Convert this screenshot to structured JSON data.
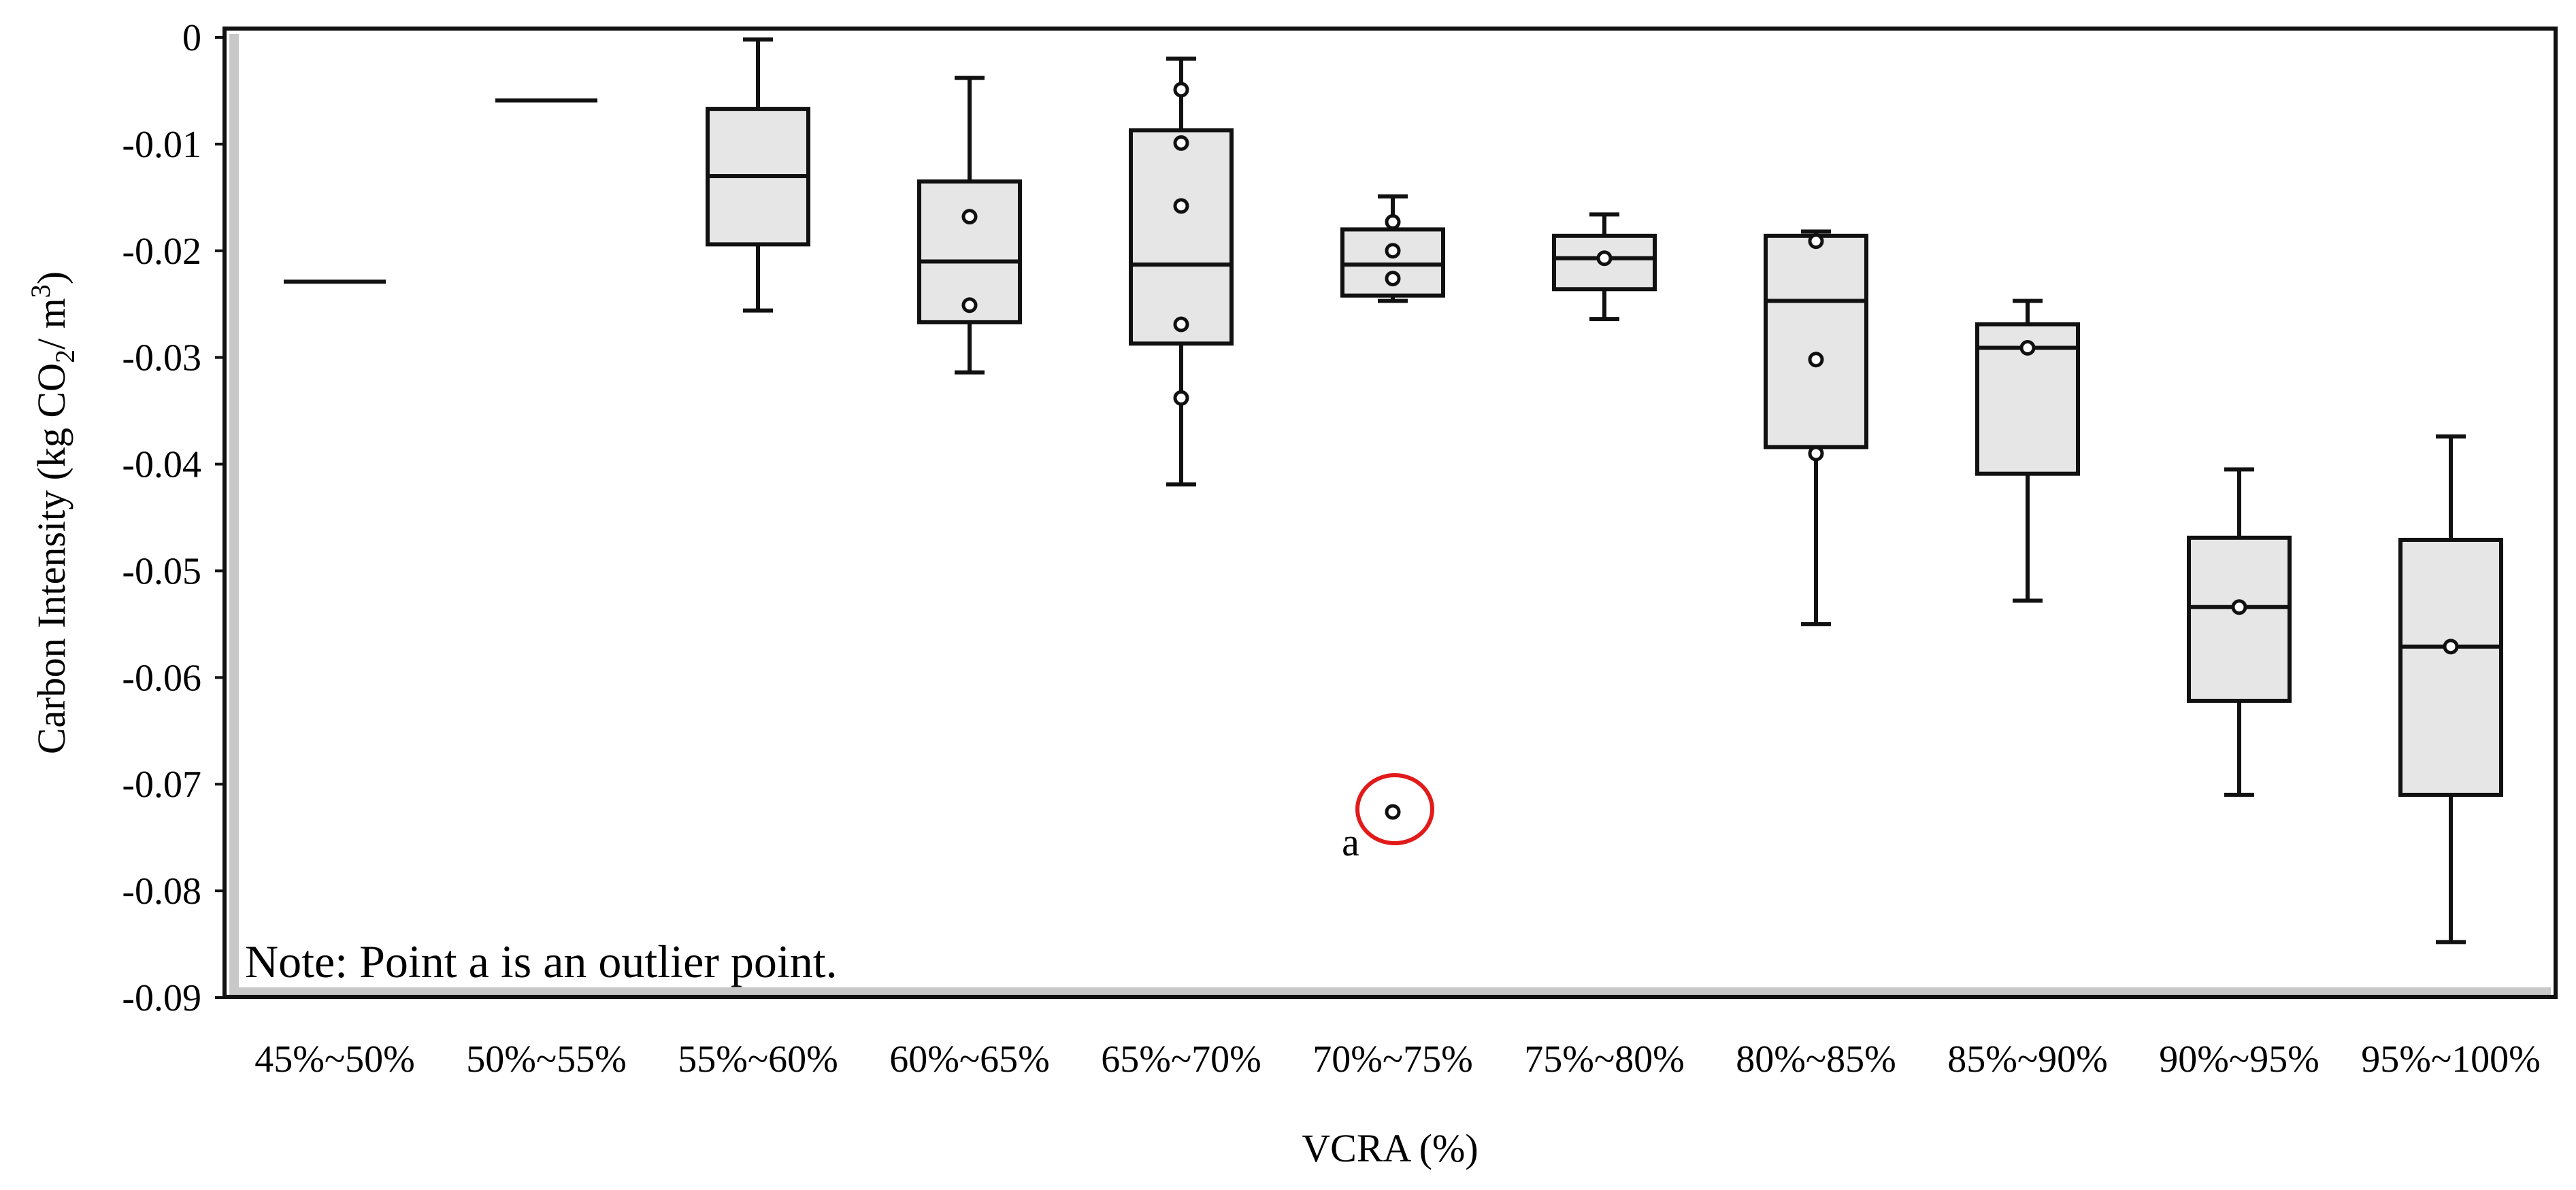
{
  "chart_data": {
    "type": "box",
    "xlabel": "VCRA (%)",
    "ylabel_parts": [
      "Carbon Intensity (kg CO",
      "2",
      "/ m",
      "3",
      ")"
    ],
    "ylim": [
      -0.09,
      0
    ],
    "yticks": [
      0,
      -0.01,
      -0.02,
      -0.03,
      -0.04,
      -0.05,
      -0.06,
      -0.07,
      -0.08,
      -0.09
    ],
    "ytick_labels": [
      "0",
      "-0.01",
      "-0.02",
      "-0.03",
      "-0.04",
      "-0.05",
      "-0.06",
      "-0.07",
      "-0.08",
      "-0.09"
    ],
    "grid": false,
    "colors": {
      "box_fill": "#e6e6e6",
      "stroke": "#111111",
      "highlight": "#e21a1a",
      "frame_shadow": "#c8c8c8"
    },
    "categories": [
      "45%~50%",
      "50%~55%",
      "55%~60%",
      "60%~65%",
      "65%~70%",
      "70%~75%",
      "75%~80%",
      "80%~85%",
      "85%~90%",
      "90%~95%",
      "95%~100%"
    ],
    "boxes": [
      {
        "category": "45%~50%",
        "single": -0.0229
      },
      {
        "category": "50%~55%",
        "single": -0.0059
      },
      {
        "category": "55%~60%",
        "whisker_high": -0.0002,
        "q3": -0.0067,
        "median": -0.013,
        "q1": -0.0194,
        "whisker_low": -0.0256,
        "points": []
      },
      {
        "category": "60%~65%",
        "whisker_high": -0.0038,
        "q3": -0.0135,
        "median": -0.021,
        "q1": -0.0267,
        "whisker_low": -0.0314,
        "points": [
          -0.0168,
          -0.0251
        ]
      },
      {
        "category": "65%~70%",
        "whisker_high": -0.002,
        "q3": -0.0087,
        "median": -0.0213,
        "q1": -0.0287,
        "whisker_low": -0.0419,
        "points": [
          -0.0049,
          -0.0099,
          -0.0158,
          -0.0269,
          -0.0338
        ]
      },
      {
        "category": "70%~75%",
        "whisker_high": -0.0149,
        "q3": -0.018,
        "median": -0.0213,
        "q1": -0.0242,
        "whisker_low": -0.0247,
        "points": [
          -0.0173,
          -0.02,
          -0.0226
        ]
      },
      {
        "category": "75%~80%",
        "whisker_high": -0.0166,
        "q3": -0.0186,
        "median": -0.0207,
        "q1": -0.0236,
        "whisker_low": -0.0264,
        "points": [
          -0.0207
        ]
      },
      {
        "category": "80%~85%",
        "whisker_high": -0.0182,
        "q3": -0.0186,
        "median": -0.0247,
        "q1": -0.0384,
        "whisker_low": -0.055,
        "points": [
          -0.0191,
          -0.0302,
          -0.039
        ]
      },
      {
        "category": "85%~90%",
        "whisker_high": -0.0247,
        "q3": -0.0269,
        "median": -0.0291,
        "q1": -0.0409,
        "whisker_low": -0.0528,
        "points": [
          -0.0291
        ]
      },
      {
        "category": "90%~95%",
        "whisker_high": -0.0405,
        "q3": -0.0469,
        "median": -0.0534,
        "q1": -0.0622,
        "whisker_low": -0.071,
        "points": [
          -0.0534
        ]
      },
      {
        "category": "95%~100%",
        "whisker_high": -0.0374,
        "q3": -0.0471,
        "median": -0.0571,
        "q1": -0.071,
        "whisker_low": -0.0848,
        "points": [
          -0.0571
        ]
      }
    ],
    "outlier": {
      "category": "70%~75%",
      "value": -0.0726,
      "label": "a"
    },
    "note": "Note: Point a is an outlier point."
  }
}
